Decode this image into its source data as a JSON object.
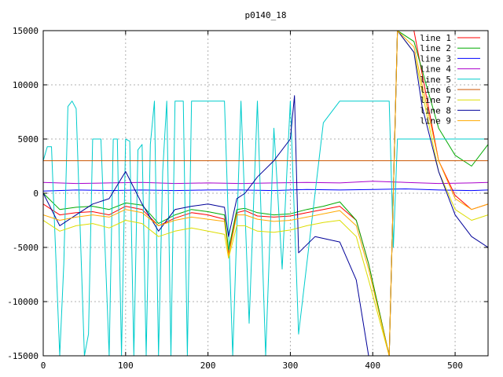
{
  "chart_data": {
    "type": "line",
    "title": "p0140_18",
    "xlabel": "",
    "ylabel": "",
    "xlim": [
      0,
      540
    ],
    "ylim": [
      -15000,
      15000
    ],
    "x_ticks": [
      0,
      100,
      200,
      300,
      400,
      500
    ],
    "y_ticks": [
      -15000,
      -10000,
      -5000,
      0,
      5000,
      10000,
      15000
    ],
    "x_tick_labels": [
      "0",
      "100",
      "200",
      "300",
      "400",
      "500"
    ],
    "y_tick_labels": [
      "-15000",
      "-10000",
      "-5000",
      "0",
      "5000",
      "10000",
      "15000"
    ],
    "grid": true,
    "legend_position": "top-right",
    "series": [
      {
        "name": "line 1",
        "color": "#ff0000",
        "x": [
          0,
          20,
          40,
          60,
          80,
          100,
          120,
          140,
          160,
          180,
          200,
          220,
          225,
          235,
          245,
          260,
          280,
          300,
          320,
          340,
          360,
          380,
          395,
          420,
          430,
          450,
          460,
          480,
          500,
          520,
          540
        ],
        "y": [
          -1000,
          -2000,
          -1800,
          -1700,
          -2000,
          -1200,
          -1500,
          -3000,
          -2300,
          -1800,
          -2000,
          -2400,
          -5500,
          -1800,
          -1600,
          -2100,
          -2200,
          -2100,
          -1800,
          -1500,
          -1200,
          -2500,
          -6500,
          -15000,
          15000,
          15000,
          11000,
          3000,
          -200,
          -1500,
          -1000
        ]
      },
      {
        "name": "line 2",
        "color": "#00aa00",
        "x": [
          0,
          20,
          40,
          60,
          80,
          100,
          120,
          140,
          160,
          180,
          200,
          220,
          225,
          235,
          245,
          260,
          280,
          300,
          320,
          340,
          360,
          380,
          395,
          420,
          430,
          450,
          480,
          500,
          520,
          540
        ],
        "y": [
          0,
          -1500,
          -1300,
          -1200,
          -1500,
          -900,
          -1100,
          -2800,
          -2000,
          -1500,
          -1700,
          -2000,
          -5200,
          -1500,
          -1400,
          -1800,
          -2000,
          -1900,
          -1500,
          -1200,
          -800,
          -2500,
          -6500,
          -15000,
          15000,
          14000,
          6000,
          3500,
          2500,
          4500
        ]
      },
      {
        "name": "line 3",
        "color": "#0000ff",
        "x": [
          0,
          40,
          80,
          120,
          160,
          200,
          240,
          280,
          300,
          320,
          360,
          400,
          440,
          480,
          520,
          540
        ],
        "y": [
          200,
          300,
          250,
          300,
          250,
          300,
          300,
          250,
          300,
          350,
          300,
          350,
          400,
          300,
          250,
          300
        ]
      },
      {
        "name": "line 4",
        "color": "#aa00cc",
        "x": [
          0,
          40,
          80,
          120,
          160,
          200,
          240,
          280,
          320,
          360,
          400,
          440,
          480,
          520,
          540
        ],
        "y": [
          1000,
          900,
          950,
          1000,
          900,
          950,
          900,
          950,
          1000,
          950,
          1100,
          1000,
          900,
          950,
          1000
        ]
      },
      {
        "name": "line 5",
        "color": "#00cccc",
        "x": [
          0,
          5,
          10,
          20,
          25,
          30,
          35,
          40,
          50,
          55,
          60,
          65,
          70,
          80,
          85,
          90,
          95,
          100,
          105,
          110,
          115,
          120,
          125,
          130,
          135,
          140,
          145,
          150,
          155,
          160,
          170,
          175,
          180,
          185,
          190,
          200,
          220,
          230,
          240,
          250,
          260,
          270,
          280,
          290,
          300,
          310,
          340,
          360,
          370,
          380,
          400,
          420,
          425,
          430,
          440,
          450,
          460,
          470,
          480,
          500,
          520,
          540
        ],
        "y": [
          3000,
          4300,
          4300,
          -15000,
          -6500,
          8000,
          8500,
          7800,
          -15000,
          -13000,
          5000,
          5000,
          5000,
          -15000,
          5000,
          5000,
          -15000,
          5000,
          4800,
          -15000,
          4000,
          4500,
          -15000,
          4500,
          8500,
          -15000,
          2000,
          8500,
          -15000,
          8500,
          8500,
          -15000,
          8500,
          8500,
          8500,
          8500,
          8500,
          -15000,
          8500,
          -12000,
          8500,
          -15000,
          6000,
          -7000,
          8500,
          -13000,
          6500,
          8500,
          8500,
          8500,
          8500,
          8500,
          -5000,
          5000,
          5000,
          5000,
          5000,
          5000,
          5000,
          5000,
          5000,
          5000
        ]
      },
      {
        "name": "line 6",
        "color": "#cc5500",
        "x": [
          0,
          540
        ],
        "y": [
          3000,
          3000
        ]
      },
      {
        "name": "line 7",
        "color": "#dddd00",
        "x": [
          0,
          20,
          40,
          60,
          80,
          100,
          120,
          140,
          160,
          180,
          200,
          220,
          225,
          235,
          245,
          260,
          280,
          300,
          320,
          340,
          360,
          380,
          395,
          420,
          430,
          450,
          480,
          500,
          520,
          540
        ],
        "y": [
          -2500,
          -3500,
          -3000,
          -2800,
          -3200,
          -2500,
          -2800,
          -4000,
          -3500,
          -3200,
          -3500,
          -3800,
          -6000,
          -3000,
          -3000,
          -3500,
          -3600,
          -3400,
          -3000,
          -2700,
          -2500,
          -4000,
          -8000,
          -15000,
          15000,
          13000,
          2000,
          -1500,
          -2500,
          -2000
        ]
      },
      {
        "name": "line 8",
        "color": "#000099",
        "x": [
          0,
          20,
          40,
          60,
          80,
          100,
          120,
          140,
          160,
          180,
          200,
          220,
          225,
          235,
          245,
          260,
          280,
          300,
          305,
          310,
          330,
          360,
          380,
          395,
          420,
          430,
          450,
          460,
          480,
          500,
          520,
          540
        ],
        "y": [
          0,
          -3000,
          -2000,
          -1000,
          -500,
          2000,
          -1000,
          -3500,
          -1500,
          -1200,
          -1000,
          -1300,
          -4000,
          -500,
          0,
          1500,
          3000,
          5000,
          9000,
          -5500,
          -4000,
          -4500,
          -8000,
          -15000,
          -15000,
          15000,
          13000,
          8000,
          2000,
          -2000,
          -4000,
          -5000
        ]
      },
      {
        "name": "line 9",
        "color": "#ffaa00",
        "x": [
          0,
          20,
          40,
          60,
          80,
          100,
          120,
          140,
          160,
          180,
          200,
          220,
          225,
          235,
          245,
          260,
          280,
          300,
          320,
          340,
          360,
          380,
          395,
          420,
          430,
          450,
          480,
          500,
          520,
          540
        ],
        "y": [
          -2000,
          -2500,
          -2200,
          -2000,
          -2200,
          -1500,
          -1800,
          -3000,
          -2500,
          -2200,
          -2400,
          -2600,
          -5800,
          -2000,
          -2000,
          -2400,
          -2600,
          -2500,
          -2200,
          -1900,
          -1600,
          -3000,
          -7000,
          -15000,
          15000,
          13500,
          3000,
          -500,
          -1500,
          -1000
        ]
      }
    ]
  }
}
